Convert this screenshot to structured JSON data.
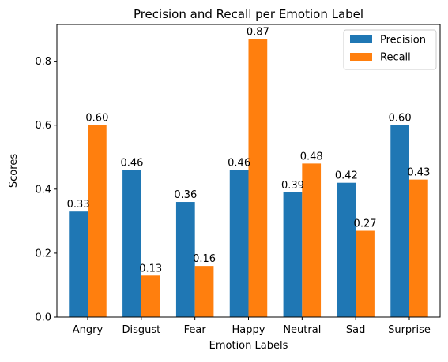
{
  "chart_data": {
    "type": "bar",
    "title": "Precision and Recall per Emotion Label",
    "xlabel": "Emotion Labels",
    "ylabel": "Scores",
    "categories": [
      "Angry",
      "Disgust",
      "Fear",
      "Happy",
      "Neutral",
      "Sad",
      "Surprise"
    ],
    "series": [
      {
        "name": "Precision",
        "color": "#1f77b4",
        "values": [
          0.33,
          0.46,
          0.36,
          0.46,
          0.39,
          0.42,
          0.6
        ],
        "labels": [
          "0.33",
          "0.46",
          "0.36",
          "0.46",
          "0.39",
          "0.42",
          "0.60"
        ]
      },
      {
        "name": "Recall",
        "color": "#ff7f0e",
        "values": [
          0.6,
          0.13,
          0.16,
          0.87,
          0.48,
          0.27,
          0.43
        ],
        "labels": [
          "0.60",
          "0.13",
          "0.16",
          "0.87",
          "0.48",
          "0.27",
          "0.43"
        ]
      }
    ],
    "ylim": [
      0,
      0.915
    ],
    "yticks": [
      0.0,
      0.2,
      0.4,
      0.6,
      0.8
    ],
    "ytick_labels": [
      "0.0",
      "0.2",
      "0.4",
      "0.6",
      "0.8"
    ],
    "grid": false,
    "legend_position": "top-right"
  }
}
